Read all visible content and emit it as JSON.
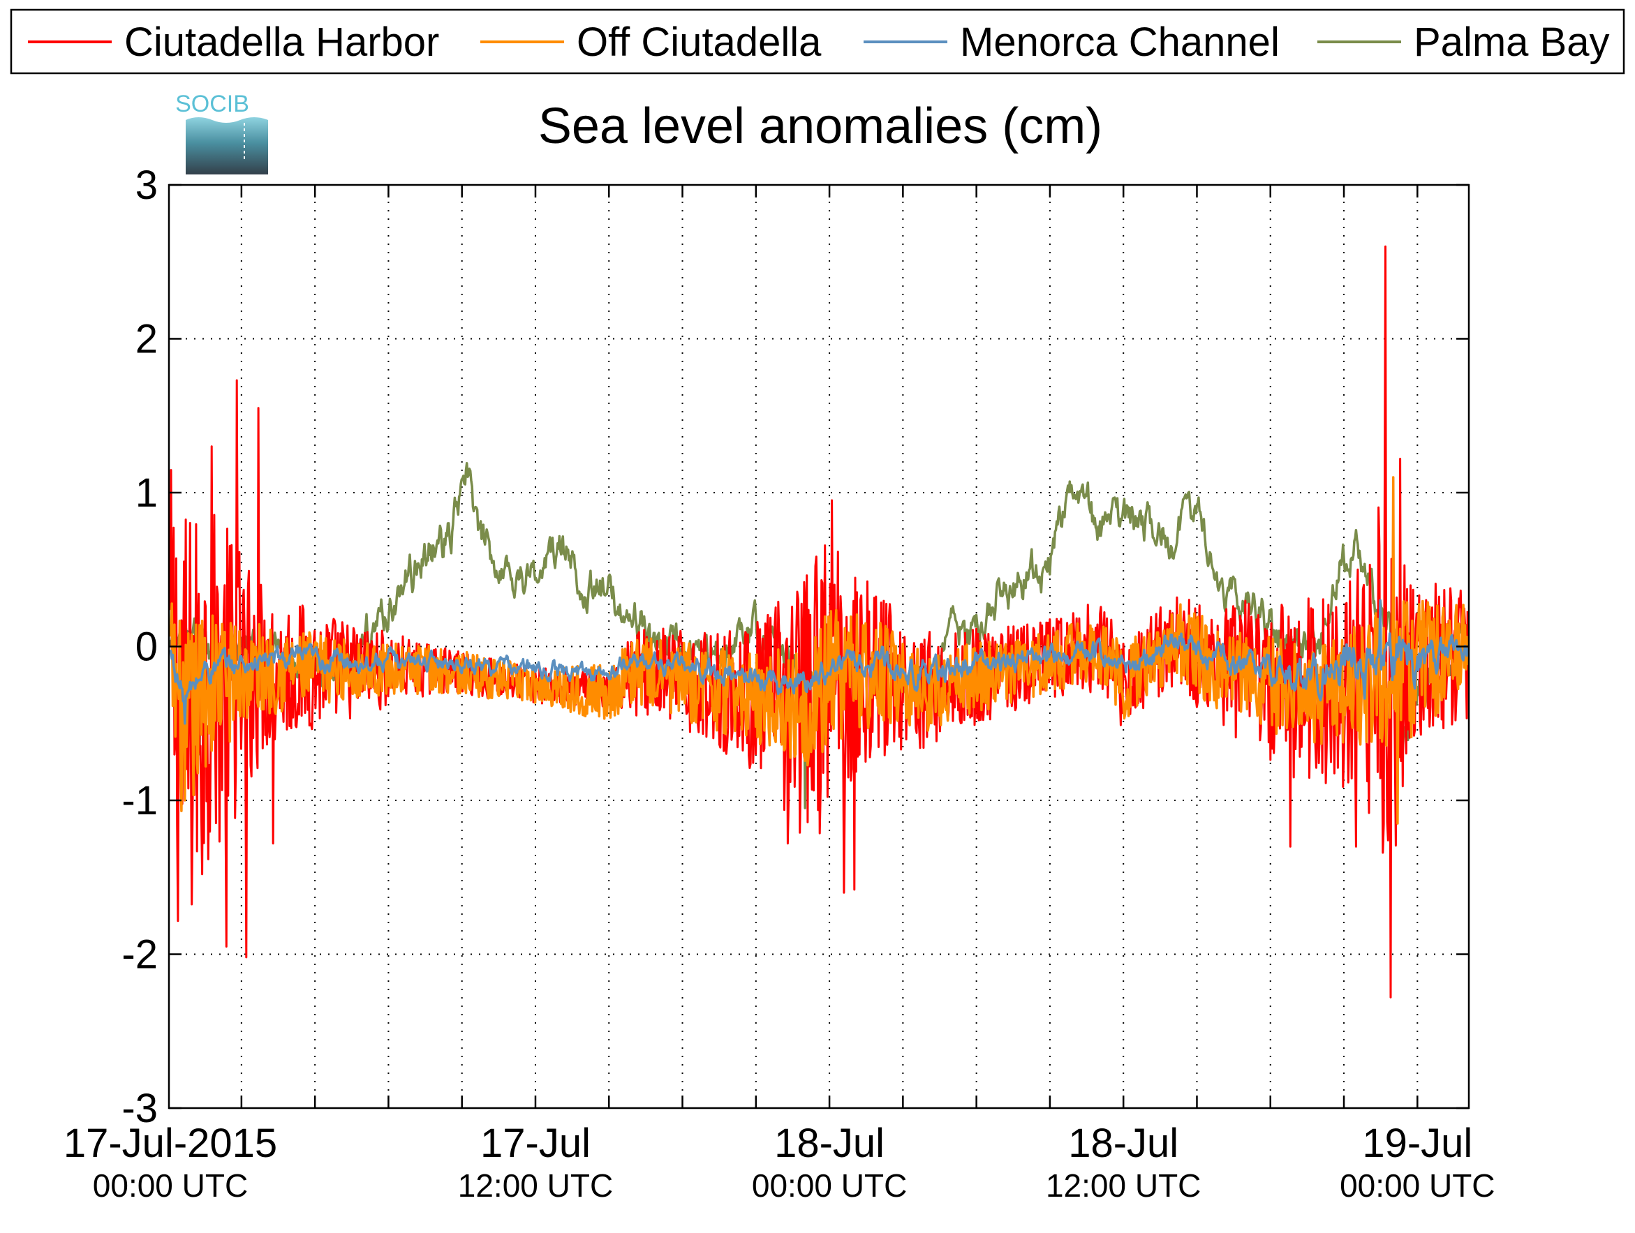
{
  "chart_data": {
    "type": "line",
    "title": "Sea level anomalies (cm)",
    "ylim": [
      -3,
      3
    ],
    "yticks": [
      3,
      2,
      1,
      0,
      -1,
      -2,
      -3
    ],
    "xrange_hours": [
      0,
      48
    ],
    "x_major_labels": [
      {
        "hour": 0,
        "date": "17-Jul-2015",
        "time": "00:00 UTC"
      },
      {
        "hour": 12,
        "date": "17-Jul",
        "time": "12:00 UTC"
      },
      {
        "hour": 24,
        "date": "18-Jul",
        "time": "00:00 UTC"
      },
      {
        "hour": 36,
        "date": "18-Jul",
        "time": "12:00 UTC"
      },
      {
        "hour": 48,
        "date": "19-Jul",
        "time": "00:00 UTC"
      }
    ],
    "grid": true,
    "legend_position": "top",
    "logo_text": "SOCIB",
    "series": [
      {
        "name": "Ciutadella Harbor",
        "color": "#ff0000",
        "noise_profile": [
          [
            -3,
            1.2
          ],
          [
            -2.5,
            1.6
          ],
          [
            -1.5,
            1.2
          ],
          [
            -0.5,
            1.0
          ],
          [
            1,
            0.55
          ],
          [
            3,
            0.4
          ],
          [
            5,
            0.3
          ],
          [
            8,
            0.15
          ],
          [
            12,
            0.12
          ],
          [
            15,
            0.12
          ],
          [
            16,
            0.3
          ],
          [
            19,
            0.35
          ],
          [
            21,
            0.5
          ],
          [
            22,
            0.7
          ],
          [
            23,
            0.9
          ],
          [
            24,
            1.0
          ],
          [
            25,
            0.7
          ],
          [
            27,
            0.45
          ],
          [
            29,
            0.35
          ],
          [
            31,
            0.3
          ],
          [
            33,
            0.28
          ],
          [
            35,
            0.3
          ],
          [
            37,
            0.3
          ],
          [
            39,
            0.35
          ],
          [
            41,
            0.5
          ],
          [
            43,
            0.6
          ],
          [
            45,
            0.7
          ],
          [
            46,
            0.9
          ],
          [
            46.8,
            1.5
          ],
          [
            47.5,
            0.8
          ],
          [
            48,
            0.5
          ],
          [
            49.5,
            0.5
          ]
        ],
        "spikes": [
          [
            -1.6,
            -1.48
          ],
          [
            -1.2,
            1.3
          ],
          [
            -0.6,
            -1.95
          ],
          [
            -0.2,
            1.73
          ],
          [
            0.2,
            -2.02
          ],
          [
            0.7,
            1.55
          ],
          [
            1.3,
            -1.28
          ],
          [
            24.1,
            0.95
          ],
          [
            24.6,
            -1.6
          ],
          [
            25,
            -1.58
          ],
          [
            22.3,
            -1.28
          ],
          [
            46.7,
            2.6
          ],
          [
            46.9,
            -2.28
          ],
          [
            47.3,
            1.22
          ],
          [
            45.5,
            -1.3
          ],
          [
            42.8,
            -1.3
          ]
        ]
      },
      {
        "name": "Off Ciutadella",
        "color": "#ff8c00",
        "noise_profile": [
          [
            -3,
            0.4
          ],
          [
            -2.3,
            0.7
          ],
          [
            -1,
            0.45
          ],
          [
            1,
            0.3
          ],
          [
            5,
            0.18
          ],
          [
            12,
            0.12
          ],
          [
            16,
            0.22
          ],
          [
            21,
            0.3
          ],
          [
            24,
            0.45
          ],
          [
            28,
            0.25
          ],
          [
            33,
            0.2
          ],
          [
            37,
            0.25
          ],
          [
            41,
            0.3
          ],
          [
            45,
            0.35
          ],
          [
            47,
            0.55
          ],
          [
            49.5,
            0.3
          ]
        ],
        "spikes": [
          [
            -2.3,
            -1.0
          ],
          [
            47,
            1.1
          ],
          [
            47.2,
            -1.15
          ]
        ]
      },
      {
        "name": "Menorca Channel",
        "color": "#5b8fbf",
        "noise_profile": [
          [
            -3,
            0.12
          ],
          [
            2,
            0.1
          ],
          [
            8,
            0.07
          ],
          [
            15,
            0.08
          ],
          [
            22,
            0.1
          ],
          [
            26,
            0.12
          ],
          [
            35,
            0.1
          ],
          [
            42,
            0.12
          ],
          [
            47,
            0.25
          ],
          [
            49.5,
            0.1
          ]
        ],
        "spikes": [
          [
            -2.3,
            -0.5
          ],
          [
            46.5,
            0.3
          ]
        ]
      },
      {
        "name": "Palma Bay",
        "color": "#7a8c4a",
        "base": [
          [
            -3,
            0
          ],
          [
            -1.5,
            0
          ],
          [
            1,
            -0.05
          ],
          [
            4,
            -0.15
          ],
          [
            6.5,
            0.35
          ],
          [
            7.5,
            0.6
          ],
          [
            8.5,
            0.7
          ],
          [
            9.2,
            1.12
          ],
          [
            9.8,
            0.65
          ],
          [
            11,
            0.48
          ],
          [
            12,
            0.45
          ],
          [
            13,
            0.65
          ],
          [
            14,
            0.4
          ],
          [
            15,
            0.32
          ],
          [
            16,
            0.2
          ],
          [
            17,
            0.0
          ],
          [
            19,
            -0.1
          ],
          [
            21,
            0.1
          ],
          [
            23,
            -0.2
          ],
          [
            24,
            -0.3
          ],
          [
            25,
            -0.15
          ],
          [
            27,
            -0.15
          ],
          [
            28,
            -0.3
          ],
          [
            29,
            0.1
          ],
          [
            30,
            0.1
          ],
          [
            31,
            0.35
          ],
          [
            32,
            0.45
          ],
          [
            33,
            0.55
          ],
          [
            34,
            1.1
          ],
          [
            35,
            0.72
          ],
          [
            36,
            0.82
          ],
          [
            37,
            0.78
          ],
          [
            38,
            0.7
          ],
          [
            39,
            0.9
          ],
          [
            40,
            0.4
          ],
          [
            41,
            0.3
          ],
          [
            42,
            0.15
          ],
          [
            43,
            0.0
          ],
          [
            44,
            -0.05
          ],
          [
            44.8,
            0.55
          ],
          [
            45.5,
            0.65
          ],
          [
            46.2,
            0.3
          ],
          [
            47,
            0.05
          ],
          [
            47.5,
            -0.6
          ],
          [
            48,
            -0.3
          ],
          [
            49.5,
            0.0
          ]
        ],
        "noise_amp": 0.15,
        "spikes": [
          [
            23,
            -1.05
          ],
          [
            -1.7,
            -0.7
          ]
        ]
      }
    ]
  }
}
